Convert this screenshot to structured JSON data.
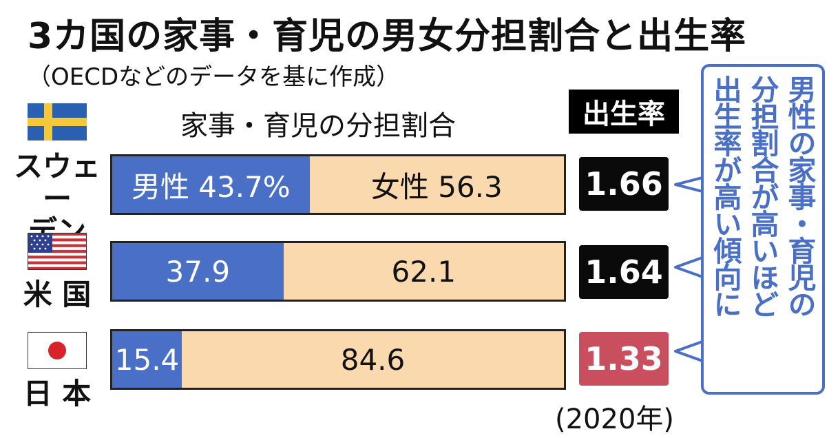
{
  "title": "3カ国の家事・育児の男女分担割合と出生率",
  "source_note": "（OECDなどのデータを基に作成）",
  "bars_heading": "家事・育児の分担割合",
  "rate_heading": "出生率",
  "year_note": "(2020年)",
  "callout": {
    "line1": "男性の家事・育児の",
    "line2": "分担割合が高いほど",
    "line3": "出生率が高い傾向に"
  },
  "colors": {
    "male": "#4a6fc7",
    "female": "#f9d9ad",
    "rate_default": "#0a0a0a",
    "rate_japan": "#c94f5f"
  },
  "rows": [
    {
      "country_line1": "スウェー",
      "country_line2": "デン",
      "flag": "sweden-flag-icon",
      "male_label": "男性 43.7%",
      "female_label": "女性 56.3",
      "rate": "1.66"
    },
    {
      "country_line1": "米 国",
      "country_line2": "",
      "flag": "us-flag-icon",
      "male_label": "37.9",
      "female_label": "62.1",
      "rate": "1.64"
    },
    {
      "country_line1": "日 本",
      "country_line2": "",
      "flag": "japan-flag-icon",
      "male_label": "15.4",
      "female_label": "84.6",
      "rate": "1.33"
    }
  ],
  "chart_data": {
    "type": "bar",
    "stacked": true,
    "orientation": "horizontal",
    "title": "3カ国の家事・育児の男女分担割合と出生率",
    "categories": [
      "スウェーデン",
      "米国",
      "日本"
    ],
    "series": [
      {
        "name": "男性",
        "values": [
          43.7,
          37.9,
          15.4
        ]
      },
      {
        "name": "女性",
        "values": [
          56.3,
          62.1,
          84.6
        ]
      }
    ],
    "xlim": [
      0,
      100
    ],
    "birth_rate": [
      1.66,
      1.64,
      1.33
    ]
  }
}
